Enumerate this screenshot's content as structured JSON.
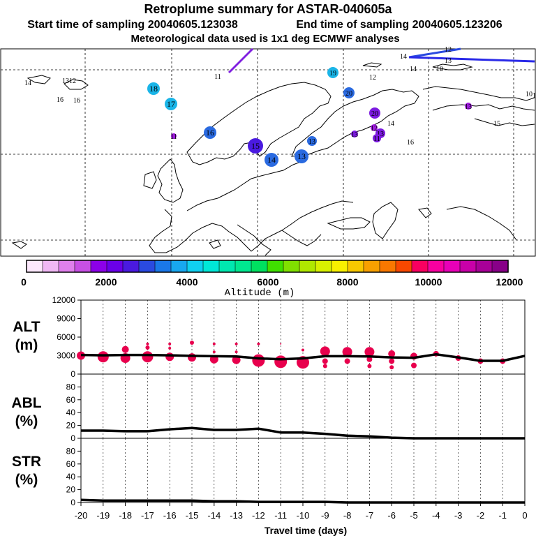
{
  "title": "Retroplume summary for ASTAR-040605a",
  "subtitle_start": "Start time of sampling 20040605.123038",
  "subtitle_end": "End time of sampling 20040605.123206",
  "subtitle_met": "Meteorological data used is 1x1 deg ECMWF analyses",
  "colors": {
    "alt_dot": "#e8004d",
    "line": "#000000",
    "map_line": "#000000",
    "plume": "#6a0dcc"
  },
  "map": {
    "markers": [
      {
        "label": "11",
        "color": "#ffffff"
      },
      {
        "label": "12",
        "color": "#ffffff"
      },
      {
        "label": "12",
        "color": "#ffffff"
      },
      {
        "label": "13",
        "color": "#ffffff"
      },
      {
        "label": "14",
        "color": "#ffffff"
      },
      {
        "label": "14",
        "color": "#ffffff"
      },
      {
        "label": "10",
        "color": "#ffffff"
      },
      {
        "label": "10",
        "color": "#ffffff"
      },
      {
        "label": "14",
        "color": "#ffffff"
      },
      {
        "label": "13",
        "color": "#ffffff"
      },
      {
        "label": "12",
        "color": "#ffffff"
      },
      {
        "label": "18",
        "color": "#1ab5e8"
      },
      {
        "label": "17",
        "color": "#1ab5e8"
      },
      {
        "label": "16",
        "color": "#ffffff"
      },
      {
        "label": "16",
        "color": "#ffffff"
      },
      {
        "label": "19",
        "color": "#1ab5e8"
      },
      {
        "label": "20",
        "color": "#2a6ae0"
      },
      {
        "label": "16",
        "color": "#2a6ae0"
      },
      {
        "label": "20",
        "color": "#7c1ae0"
      },
      {
        "label": "13",
        "color": "#7c1ae0"
      },
      {
        "label": "15",
        "color": "#4a1ae0"
      },
      {
        "label": "14",
        "color": "#2a6ae0"
      },
      {
        "label": "13",
        "color": "#2a6ae0"
      },
      {
        "label": "13",
        "color": "#2a6ae0"
      },
      {
        "label": "13",
        "color": "#7c1ae0"
      },
      {
        "label": "11",
        "color": "#7c1ae0"
      },
      {
        "label": "13",
        "color": "#a01ae0"
      },
      {
        "label": "12",
        "color": "#a01ae0"
      },
      {
        "label": "14",
        "color": "#ffffff"
      },
      {
        "label": "16",
        "color": "#ffffff"
      },
      {
        "label": "11",
        "color": "#a01ae0"
      },
      {
        "label": "15",
        "color": "#ffffff"
      },
      {
        "label": "10",
        "color": "#ffffff"
      }
    ]
  },
  "colorbar": {
    "colors": [
      "#fce8fc",
      "#f0b8f4",
      "#e080ec",
      "#c850e4",
      "#8c00e8",
      "#6a00e8",
      "#4a1ae0",
      "#2a4ae0",
      "#1a78e8",
      "#18a8f0",
      "#10d0f0",
      "#00e8d8",
      "#00e8b0",
      "#00e890",
      "#00e060",
      "#40e000",
      "#80e000",
      "#b0e800",
      "#d8f000",
      "#f8f000",
      "#f8c800",
      "#f8a000",
      "#f87800",
      "#f84800",
      "#f80060",
      "#f800a0",
      "#e800b8",
      "#c800a8",
      "#a80098",
      "#880088"
    ],
    "tick_labels": [
      "0",
      "2000",
      "4000",
      "6000",
      "8000",
      "10000",
      "12000"
    ],
    "label": "Altitude (m)"
  },
  "chart_data": [
    {
      "type": "line",
      "panel": "ALT",
      "ylabel_line1": "ALT",
      "ylabel_line2": "(m)",
      "ylim": [
        0,
        12000
      ],
      "yticks": [
        "0",
        "3000",
        "6000",
        "9000",
        "12000"
      ],
      "x": [
        -20,
        -19,
        -18,
        -17,
        -16,
        -15,
        -14,
        -13,
        -12,
        -11,
        -10,
        -9,
        -8,
        -7,
        -6,
        -5,
        -4,
        -3,
        -2,
        -1,
        0
      ],
      "values": [
        3100,
        3050,
        3100,
        3100,
        3050,
        2950,
        2900,
        2850,
        2550,
        2400,
        2550,
        2900,
        2900,
        2850,
        2700,
        2650,
        3200,
        2700,
        2150,
        2150,
        2950
      ],
      "bubbles": [
        {
          "x": -20,
          "y": 3000,
          "r": 6
        },
        {
          "x": -19,
          "y": 2800,
          "r": 8
        },
        {
          "x": -18,
          "y": 2600,
          "r": 7
        },
        {
          "x": -18,
          "y": 4000,
          "r": 5
        },
        {
          "x": -17,
          "y": 2800,
          "r": 8
        },
        {
          "x": -17,
          "y": 4300,
          "r": 3
        },
        {
          "x": -17,
          "y": 4900,
          "r": 2
        },
        {
          "x": -16,
          "y": 2800,
          "r": 6
        },
        {
          "x": -16,
          "y": 4200,
          "r": 2
        },
        {
          "x": -16,
          "y": 4900,
          "r": 2
        },
        {
          "x": -15,
          "y": 2700,
          "r": 6
        },
        {
          "x": -15,
          "y": 5100,
          "r": 3
        },
        {
          "x": -14,
          "y": 2400,
          "r": 6
        },
        {
          "x": -14,
          "y": 3600,
          "r": 2
        },
        {
          "x": -14,
          "y": 4900,
          "r": 2
        },
        {
          "x": -13,
          "y": 2300,
          "r": 6
        },
        {
          "x": -13,
          "y": 3600,
          "r": 2
        },
        {
          "x": -13,
          "y": 4900,
          "r": 2
        },
        {
          "x": -12,
          "y": 2200,
          "r": 9
        },
        {
          "x": -12,
          "y": 4900,
          "r": 2
        },
        {
          "x": -11,
          "y": 2000,
          "r": 9
        },
        {
          "x": -11,
          "y": 4900,
          "r": 1
        },
        {
          "x": -10,
          "y": 1900,
          "r": 9
        },
        {
          "x": -10,
          "y": 3900,
          "r": 2
        },
        {
          "x": -9,
          "y": 3700,
          "r": 7
        },
        {
          "x": -9,
          "y": 2100,
          "r": 4
        },
        {
          "x": -9,
          "y": 1300,
          "r": 3
        },
        {
          "x": -8,
          "y": 3600,
          "r": 7
        },
        {
          "x": -8,
          "y": 2100,
          "r": 4
        },
        {
          "x": -7,
          "y": 3600,
          "r": 7
        },
        {
          "x": -7,
          "y": 2400,
          "r": 4
        },
        {
          "x": -7,
          "y": 1300,
          "r": 3
        },
        {
          "x": -6,
          "y": 3300,
          "r": 5
        },
        {
          "x": -6,
          "y": 2100,
          "r": 4
        },
        {
          "x": -6,
          "y": 1100,
          "r": 3
        },
        {
          "x": -5,
          "y": 2900,
          "r": 5
        },
        {
          "x": -5,
          "y": 1400,
          "r": 4
        },
        {
          "x": -4,
          "y": 3300,
          "r": 4
        },
        {
          "x": -3,
          "y": 2600,
          "r": 4
        },
        {
          "x": -2,
          "y": 2100,
          "r": 4
        },
        {
          "x": -1,
          "y": 2100,
          "r": 4
        }
      ]
    },
    {
      "type": "line",
      "panel": "ABL",
      "ylabel_line1": "ABL",
      "ylabel_line2": "(%)",
      "ylim": [
        0,
        100
      ],
      "yticks": [
        "0",
        "20",
        "40",
        "60",
        "80"
      ],
      "x": [
        -20,
        -19,
        -18,
        -17,
        -16,
        -15,
        -14,
        -13,
        -12,
        -11,
        -10,
        -9,
        -8,
        -7,
        -6,
        -5,
        -4,
        -3,
        -2,
        -1,
        0
      ],
      "values": [
        12,
        12,
        11,
        11,
        14,
        16,
        13,
        13,
        15,
        9,
        9,
        7,
        4,
        3,
        1,
        0,
        0,
        0,
        0,
        0,
        0
      ]
    },
    {
      "type": "line",
      "panel": "STR",
      "ylabel_line1": "STR",
      "ylabel_line2": "(%)",
      "ylim": [
        0,
        100
      ],
      "yticks": [
        "0",
        "20",
        "40",
        "60",
        "80"
      ],
      "x": [
        -20,
        -19,
        -18,
        -17,
        -16,
        -15,
        -14,
        -13,
        -12,
        -11,
        -10,
        -9,
        -8,
        -7,
        -6,
        -5,
        -4,
        -3,
        -2,
        -1,
        0
      ],
      "values": [
        4,
        3,
        3,
        3,
        3,
        3,
        2,
        2,
        1,
        1,
        1,
        1,
        0,
        0,
        0,
        0,
        0,
        0,
        0,
        0,
        0
      ],
      "xticks": [
        "-20",
        "-19",
        "-18",
        "-17",
        "-16",
        "-15",
        "-14",
        "-13",
        "-12",
        "-11",
        "-10",
        "-9",
        "-8",
        "-7",
        "-6",
        "-5",
        "-4",
        "-3",
        "-2",
        "-1",
        "0"
      ],
      "xlabel": "Travel time (days)"
    }
  ]
}
